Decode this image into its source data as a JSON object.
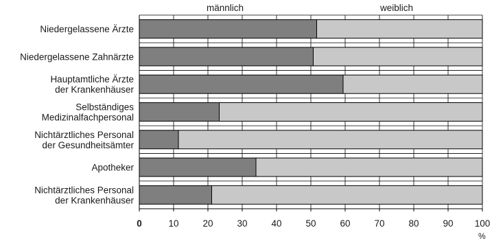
{
  "chart_data": {
    "type": "bar",
    "orientation": "horizontal",
    "stacked": true,
    "percent_stacked": true,
    "legend_position": "top",
    "grid": true,
    "categories": [
      [
        "Niedergelassene Ärzte"
      ],
      [
        "Niedergelassene Zahnärzte"
      ],
      [
        "Hauptamtliche Ärzte",
        "der Krankenhäuser"
      ],
      [
        "Selbständiges",
        "Medizinalfachpersonal"
      ],
      [
        "Nichtärztliches Personal",
        "der Gesundheitsämter"
      ],
      [
        "Apotheker"
      ],
      [
        "Nichtärztliches Personal",
        "der Krankenhäuser"
      ]
    ],
    "series": [
      {
        "name": "männlich",
        "color": "#7f7f7f",
        "values": [
          51.7,
          50.7,
          59.4,
          23.3,
          11.4,
          34.0,
          21.1
        ]
      },
      {
        "name": "weiblich",
        "color": "#c8c8c8",
        "values": [
          48.3,
          49.3,
          40.6,
          76.7,
          88.6,
          66.0,
          78.9
        ]
      }
    ],
    "xlim": [
      0,
      100
    ],
    "xticks": [
      "0",
      "10",
      "20",
      "30",
      "40",
      "50",
      "60",
      "70",
      "80",
      "90",
      "100"
    ],
    "xunit": "%"
  }
}
